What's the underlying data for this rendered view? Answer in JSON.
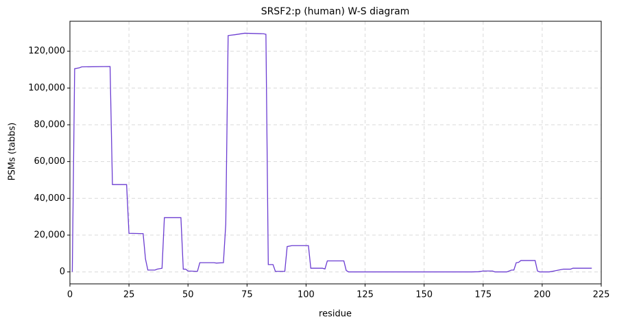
{
  "chart_data": {
    "type": "line",
    "title": "SRSF2:p (human) W-S diagram",
    "xlabel": "residue",
    "ylabel": "PSMs (tabbs)",
    "x": [
      1,
      2,
      4,
      5,
      17,
      18,
      24,
      25,
      31,
      32,
      33,
      36,
      37,
      39,
      40,
      47,
      48,
      49,
      50,
      54,
      55,
      61,
      62,
      65,
      66,
      67,
      68,
      70,
      74,
      82,
      83,
      84,
      86,
      87,
      91,
      92,
      94,
      101,
      102,
      107,
      108,
      109,
      116,
      117,
      118,
      170,
      173,
      175,
      179,
      180,
      185,
      187,
      188,
      189,
      190,
      191,
      197,
      198,
      199,
      203,
      205,
      207,
      209,
      212,
      213,
      221
    ],
    "series": [
      {
        "name": "SRSF2:p",
        "color": "#6a3bd1",
        "values": [
          0,
          110500,
          111000,
          111500,
          111700,
          47500,
          47500,
          21000,
          20800,
          7000,
          1000,
          1000,
          1500,
          2000,
          29500,
          29500,
          1500,
          1500,
          500,
          300,
          5000,
          5000,
          4800,
          5000,
          26000,
          128500,
          128700,
          129000,
          129800,
          129500,
          129200,
          4000,
          4000,
          300,
          300,
          13800,
          14300,
          14300,
          2000,
          2000,
          1600,
          6000,
          6000,
          800,
          0,
          0,
          100,
          500,
          500,
          0,
          0,
          1000,
          1000,
          5000,
          5200,
          6200,
          6200,
          500,
          0,
          0,
          500,
          1000,
          1500,
          1500,
          2000,
          2000
        ]
      }
    ],
    "xlim": [
      0,
      225
    ],
    "xticks": [
      0,
      25,
      50,
      75,
      100,
      125,
      150,
      175,
      200,
      225
    ],
    "ylim": [
      -6500,
      136300
    ],
    "yticks": [
      0,
      {
        "value": 20000,
        "label": "20,000"
      },
      {
        "value": 40000,
        "label": "40,000"
      },
      {
        "value": 60000,
        "label": "60,000"
      },
      {
        "value": 80000,
        "label": "80,000"
      },
      {
        "value": 100000,
        "label": "100,000"
      },
      {
        "value": 120000,
        "label": "120,000"
      }
    ],
    "grid": true
  }
}
